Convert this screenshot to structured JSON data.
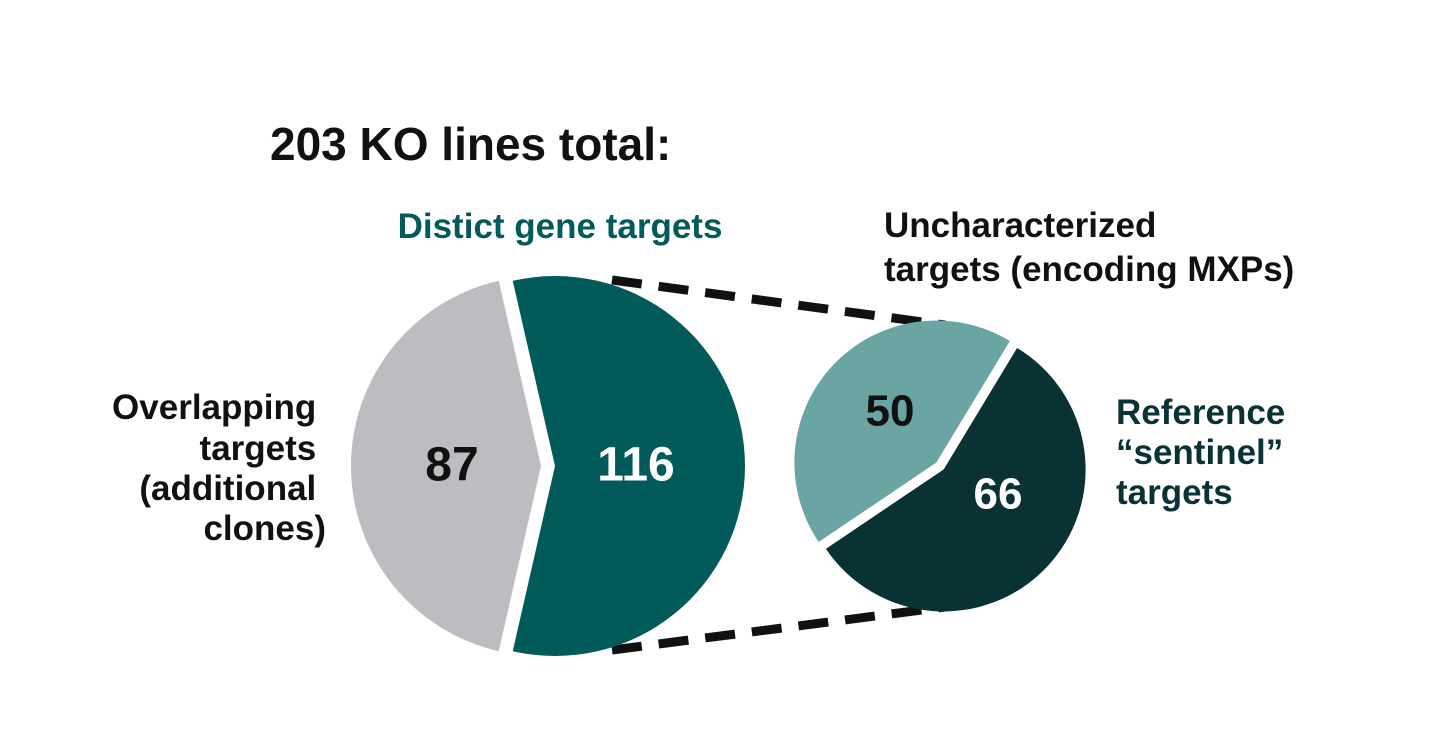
{
  "chart_data": [
    {
      "type": "pie",
      "title": "203 KO lines total:",
      "total": 203,
      "slices": [
        {
          "label": "Overlapping targets (additional clones)",
          "label_lines": [
            "Overlapping",
            "targets",
            "(additional",
            "clones)"
          ],
          "value": 87,
          "color": "#bcbdc0"
        },
        {
          "label": "Distict gene targets",
          "label_lines": [
            "Distict gene targets"
          ],
          "value": 116,
          "color": "#035a5a"
        }
      ]
    },
    {
      "type": "pie",
      "parent_slice": "Distict gene targets",
      "total": 116,
      "slices": [
        {
          "label": "Uncharacterized targets (encoding MXPs)",
          "label_lines": [
            "Uncharacterized",
            "targets (encoding MXPs)"
          ],
          "value": 50,
          "color": "#6aa5a4"
        },
        {
          "label": "Reference “sentinel” targets",
          "label_lines": [
            "Reference",
            "“sentinel”",
            "targets"
          ],
          "value": 66,
          "color": "#093234"
        }
      ]
    }
  ],
  "colors": {
    "title": "#111111",
    "distinct_label": "#035a5a",
    "reference_label": "#093234",
    "uncharacterized_label": "#111111",
    "overlap_label": "#111111",
    "connector": "#111111"
  }
}
